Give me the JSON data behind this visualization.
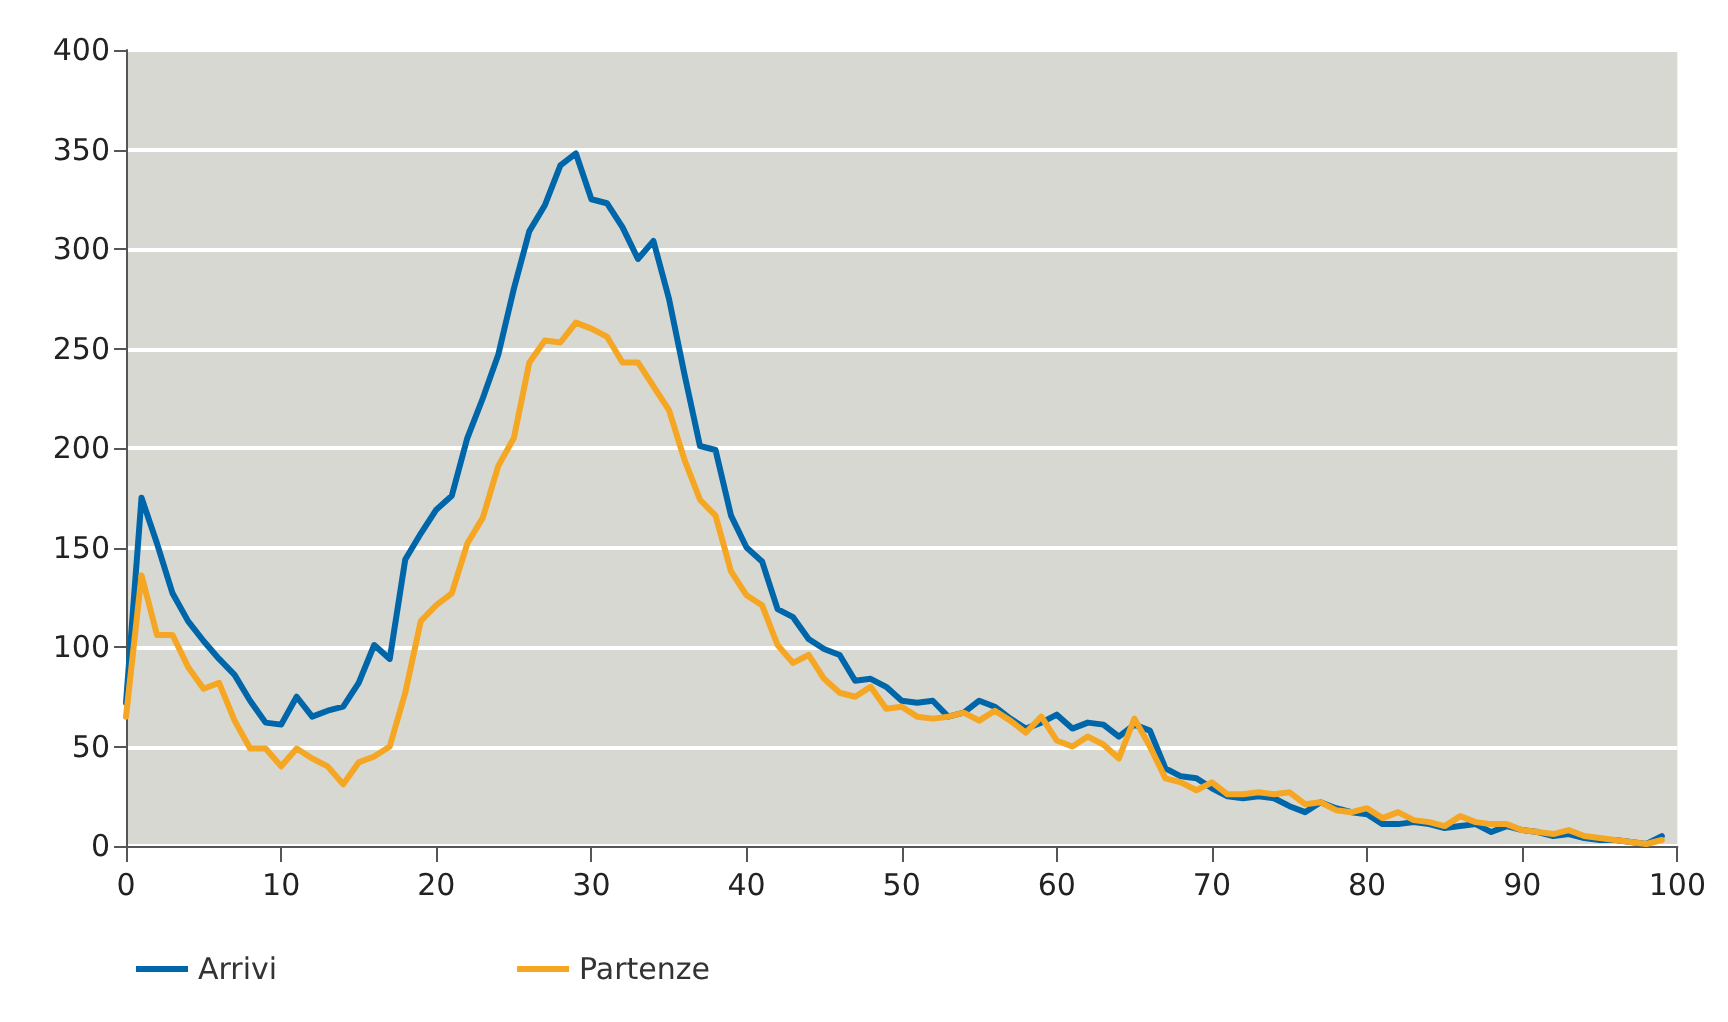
{
  "chart_data": {
    "type": "line",
    "xlim": [
      0,
      100
    ],
    "xticks": [
      0,
      10,
      20,
      30,
      40,
      50,
      60,
      70,
      80,
      90,
      100
    ],
    "ylim": [
      0,
      400
    ],
    "yticks": [
      0,
      50,
      100,
      150,
      200,
      250,
      300,
      350,
      400
    ],
    "grid": "y",
    "legend": "bottom left",
    "marker": "none",
    "line_style": "solid",
    "x": [
      0,
      1,
      2,
      3,
      4,
      5,
      6,
      7,
      8,
      9,
      10,
      11,
      12,
      13,
      14,
      15,
      16,
      17,
      18,
      19,
      20,
      21,
      22,
      23,
      24,
      25,
      26,
      27,
      28,
      29,
      30,
      31,
      32,
      33,
      34,
      35,
      36,
      37,
      38,
      39,
      40,
      41,
      42,
      43,
      44,
      45,
      46,
      47,
      48,
      49,
      50,
      51,
      52,
      53,
      54,
      55,
      56,
      57,
      58,
      59,
      60,
      61,
      62,
      63,
      64,
      65,
      66,
      67,
      68,
      69,
      70,
      71,
      72,
      73,
      74,
      75,
      76,
      77,
      78,
      79,
      80,
      81,
      82,
      83,
      84,
      85,
      86,
      87,
      88,
      89,
      90,
      91,
      92,
      93,
      94,
      95,
      96,
      97,
      98,
      99
    ],
    "series": [
      {
        "name": "Arrivi",
        "color": "#0066aa",
        "values": [
          72,
          175,
          152,
          127,
          113,
          103,
          94,
          86,
          73,
          62,
          61,
          75,
          65,
          68,
          70,
          82,
          101,
          94,
          144,
          157,
          169,
          176,
          205,
          225,
          247,
          280,
          309,
          322,
          342,
          348,
          325,
          323,
          311,
          295,
          304,
          275,
          237,
          201,
          199,
          166,
          150,
          143,
          119,
          115,
          104,
          99,
          96,
          83,
          84,
          80,
          73,
          72,
          73,
          65,
          67,
          73,
          70,
          64,
          59,
          62,
          66,
          59,
          62,
          61,
          55,
          61,
          58,
          39,
          35,
          34,
          29,
          25,
          24,
          25,
          24,
          20,
          17,
          22,
          19,
          17,
          16,
          11,
          11,
          12,
          11,
          9,
          10,
          11,
          7,
          10,
          8,
          7,
          5,
          6,
          4,
          3,
          3,
          2,
          1,
          5
        ]
      },
      {
        "name": "Partenze",
        "color": "#f5a623",
        "values": [
          65,
          136,
          106,
          106,
          90,
          79,
          82,
          63,
          49,
          49,
          40,
          49,
          44,
          40,
          31,
          42,
          45,
          50,
          77,
          113,
          121,
          127,
          152,
          165,
          191,
          205,
          243,
          254,
          253,
          263,
          260,
          256,
          243,
          243,
          231,
          219,
          194,
          174,
          166,
          138,
          126,
          121,
          101,
          92,
          96,
          84,
          77,
          75,
          80,
          69,
          70,
          65,
          64,
          65,
          67,
          63,
          68,
          63,
          57,
          65,
          53,
          50,
          55,
          51,
          44,
          64,
          50,
          34,
          32,
          28,
          32,
          26,
          26,
          27,
          26,
          27,
          21,
          22,
          18,
          17,
          19,
          14,
          17,
          13,
          12,
          10,
          15,
          12,
          11,
          11,
          8,
          7,
          6,
          8,
          5,
          4,
          3,
          2,
          1,
          3
        ]
      }
    ]
  }
}
